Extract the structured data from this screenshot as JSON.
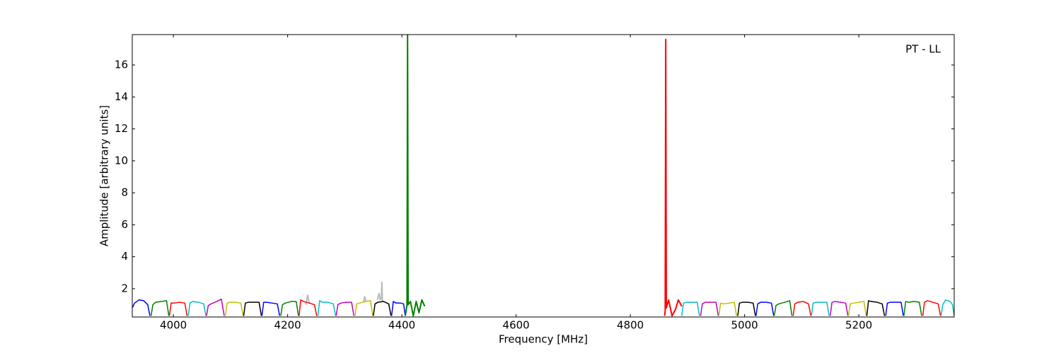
{
  "chart_data": {
    "type": "line",
    "xlabel": "Frequency [MHz]",
    "ylabel": "Amplitude [arbitrary units]",
    "annotation": "PT - LL",
    "xlim": [
      3928,
      5367
    ],
    "ylim": [
      0.23,
      17.9
    ],
    "xticks": [
      4000,
      4200,
      4400,
      4600,
      4800,
      5000,
      5200
    ],
    "yticks": [
      2,
      4,
      6,
      8,
      10,
      12,
      14,
      16
    ],
    "series": [
      {
        "color": "#bbbbbb",
        "x": [
          4232,
          4235,
          4238,
          4239,
          4333,
          4335,
          4337,
          4338,
          4357,
          4360,
          4362,
          4364,
          4365,
          4366
        ],
        "values": [
          1.0,
          1.6,
          1.1,
          null,
          1.2,
          1.5,
          1.2,
          null,
          1.3,
          1.7,
          1.3,
          1.4,
          2.4,
          1.2
        ]
      },
      {
        "color": "#0000ff",
        "x": [
          3928,
          3932,
          3940,
          3948,
          3955,
          3959
        ],
        "values": [
          0.8,
          1.1,
          1.3,
          1.25,
          1.0,
          0.3
        ]
      },
      {
        "color": "#008000",
        "x": [
          3961,
          3964,
          3969,
          3979,
          3988,
          3992
        ],
        "values": [
          0.3,
          1.0,
          1.15,
          1.2,
          1.25,
          0.3
        ]
      },
      {
        "color": "#ff0000",
        "x": [
          3993,
          3996,
          4001,
          4011,
          4020,
          4024
        ],
        "values": [
          0.3,
          1.1,
          1.1,
          1.15,
          1.1,
          0.3
        ]
      },
      {
        "color": "#00bfbf",
        "x": [
          4026,
          4029,
          4034,
          4044,
          4053,
          4057
        ],
        "values": [
          0.3,
          1.1,
          1.2,
          1.15,
          1.05,
          0.3
        ]
      },
      {
        "color": "#bf00bf",
        "x": [
          4058,
          4061,
          4066,
          4076,
          4084,
          4089
        ],
        "values": [
          0.3,
          0.95,
          1.05,
          1.2,
          1.35,
          0.3
        ]
      },
      {
        "color": "#bfbf00",
        "x": [
          4091,
          4094,
          4099,
          4109,
          4118,
          4122
        ],
        "values": [
          0.3,
          1.1,
          1.15,
          1.15,
          1.1,
          0.3
        ]
      },
      {
        "color": "#000000",
        "x": [
          4123,
          4126,
          4131,
          4141,
          4150,
          4154
        ],
        "values": [
          0.3,
          1.1,
          1.15,
          1.15,
          1.15,
          0.3
        ]
      },
      {
        "color": "#0000ff",
        "x": [
          4155,
          4158,
          4163,
          4173,
          4182,
          4186
        ],
        "values": [
          0.3,
          1.15,
          1.15,
          1.1,
          1.05,
          0.3
        ]
      },
      {
        "color": "#008000",
        "x": [
          4188,
          4191,
          4196,
          4206,
          4215,
          4219
        ],
        "values": [
          0.3,
          1.0,
          1.1,
          1.2,
          1.2,
          0.3
        ]
      },
      {
        "color": "#ff0000",
        "x": [
          4220,
          4223,
          4228,
          4238,
          4247,
          4251
        ],
        "values": [
          0.3,
          1.3,
          1.2,
          1.1,
          1.0,
          0.3
        ]
      },
      {
        "color": "#00bfbf",
        "x": [
          4253,
          4256,
          4261,
          4271,
          4280,
          4284
        ],
        "values": [
          0.3,
          1.25,
          1.15,
          1.15,
          1.05,
          0.3
        ]
      },
      {
        "color": "#bf00bf",
        "x": [
          4285,
          4288,
          4293,
          4303,
          4312,
          4316
        ],
        "values": [
          0.3,
          1.0,
          1.1,
          1.15,
          1.15,
          0.3
        ]
      },
      {
        "color": "#bfbf00",
        "x": [
          4318,
          4321,
          4326,
          4336,
          4345,
          4349
        ],
        "values": [
          0.3,
          1.05,
          1.1,
          1.2,
          1.25,
          0.3
        ]
      },
      {
        "color": "#000000",
        "x": [
          4350,
          4353,
          4358,
          4368,
          4377,
          4381
        ],
        "values": [
          0.3,
          1.05,
          1.15,
          1.2,
          1.05,
          0.3
        ]
      },
      {
        "color": "#0000ff",
        "x": [
          4382,
          4385,
          4390,
          4398,
          4403,
          4406
        ],
        "values": [
          0.3,
          1.2,
          1.1,
          1.1,
          1.05,
          0.3
        ]
      },
      {
        "color": "#008000",
        "x": [
          4406,
          4409,
          4410,
          4411,
          4415,
          4420,
          4425,
          4430,
          4435,
          4440
        ],
        "values": [
          0.3,
          1.0,
          17.9,
          1.0,
          1.2,
          0.3,
          1.2,
          0.5,
          1.3,
          0.9
        ]
      },
      {
        "color": "#ff0000",
        "x": [
          4860,
          4861,
          4862,
          4863,
          4867,
          4873,
          4879,
          4884,
          4890
        ],
        "values": [
          0.3,
          0.6,
          17.6,
          0.8,
          1.3,
          0.3,
          0.7,
          1.3,
          0.9
        ]
      },
      {
        "color": "#00bfbf",
        "x": [
          4890,
          4893,
          4898,
          4908,
          4917,
          4921
        ],
        "values": [
          0.3,
          1.1,
          1.15,
          1.15,
          1.15,
          0.3
        ]
      },
      {
        "color": "#bf00bf",
        "x": [
          4923,
          4926,
          4931,
          4941,
          4950,
          4954
        ],
        "values": [
          0.3,
          1.05,
          1.15,
          1.15,
          1.15,
          0.3
        ]
      },
      {
        "color": "#bfbf00",
        "x": [
          4955,
          4958,
          4963,
          4973,
          4982,
          4986
        ],
        "values": [
          0.3,
          1.1,
          1.05,
          1.1,
          1.15,
          0.3
        ]
      },
      {
        "color": "#000000",
        "x": [
          4988,
          4991,
          4996,
          5006,
          5015,
          5019
        ],
        "values": [
          0.3,
          1.1,
          1.15,
          1.15,
          1.1,
          0.3
        ]
      },
      {
        "color": "#0000ff",
        "x": [
          5020,
          5023,
          5028,
          5038,
          5047,
          5051
        ],
        "values": [
          0.3,
          1.05,
          1.15,
          1.15,
          1.1,
          0.3
        ]
      },
      {
        "color": "#008000",
        "x": [
          5052,
          5055,
          5060,
          5070,
          5079,
          5083
        ],
        "values": [
          0.3,
          0.95,
          1.05,
          1.15,
          1.25,
          0.3
        ]
      },
      {
        "color": "#ff0000",
        "x": [
          5085,
          5088,
          5093,
          5103,
          5112,
          5116
        ],
        "values": [
          0.3,
          1.05,
          1.15,
          1.2,
          1.05,
          0.3
        ]
      },
      {
        "color": "#00bfbf",
        "x": [
          5117,
          5120,
          5125,
          5135,
          5144,
          5148
        ],
        "values": [
          0.3,
          1.1,
          1.15,
          1.15,
          1.15,
          0.3
        ]
      },
      {
        "color": "#bf00bf",
        "x": [
          5150,
          5153,
          5158,
          5168,
          5177,
          5181
        ],
        "values": [
          0.3,
          1.15,
          1.2,
          1.15,
          1.1,
          0.3
        ]
      },
      {
        "color": "#bfbf00",
        "x": [
          5182,
          5185,
          5190,
          5200,
          5209,
          5213
        ],
        "values": [
          0.3,
          1.05,
          1.1,
          1.15,
          1.2,
          0.3
        ]
      },
      {
        "color": "#000000",
        "x": [
          5214,
          5217,
          5222,
          5232,
          5241,
          5245
        ],
        "values": [
          0.3,
          1.25,
          1.2,
          1.15,
          1.05,
          0.3
        ]
      },
      {
        "color": "#0000ff",
        "x": [
          5247,
          5250,
          5255,
          5265,
          5274,
          5278
        ],
        "values": [
          0.3,
          1.1,
          1.15,
          1.15,
          1.15,
          0.3
        ]
      },
      {
        "color": "#008000",
        "x": [
          5279,
          5282,
          5287,
          5297,
          5306,
          5310
        ],
        "values": [
          0.3,
          1.2,
          1.15,
          1.2,
          1.15,
          0.3
        ]
      },
      {
        "color": "#ff0000",
        "x": [
          5312,
          5315,
          5320,
          5330,
          5339,
          5343
        ],
        "values": [
          0.3,
          1.15,
          1.25,
          1.15,
          1.05,
          0.3
        ]
      },
      {
        "color": "#00bfbf",
        "x": [
          5344,
          5347,
          5352,
          5360,
          5364,
          5367
        ],
        "values": [
          0.3,
          1.0,
          1.3,
          1.2,
          1.0,
          0.3
        ]
      }
    ]
  }
}
